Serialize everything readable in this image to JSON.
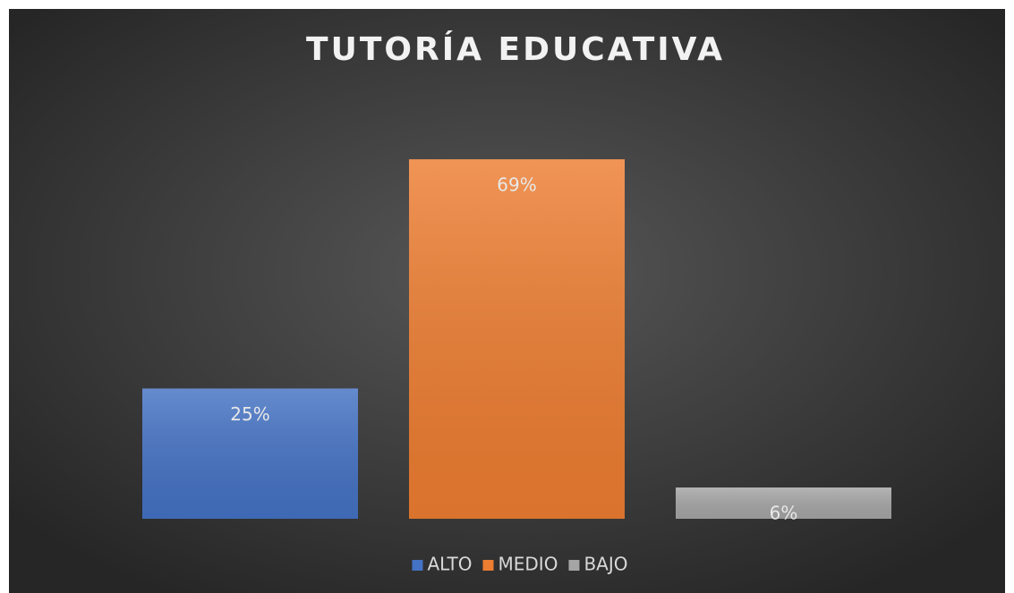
{
  "chart_data": {
    "type": "bar",
    "title": "TUTORÍA EDUCATIVA",
    "categories": [
      null
    ],
    "series": [
      {
        "name": "ALTO",
        "color": "#4472c4",
        "values": [
          25
        ],
        "value_labels": [
          "25%"
        ]
      },
      {
        "name": "MEDIO",
        "color": "#ed7d31",
        "values": [
          69
        ],
        "value_labels": [
          "69%"
        ]
      },
      {
        "name": "BAJO",
        "color": "#a5a5a5",
        "values": [
          6
        ],
        "value_labels": [
          "6%"
        ]
      }
    ],
    "ylim": [
      0,
      80
    ],
    "grid": false,
    "legend": "bottom"
  }
}
